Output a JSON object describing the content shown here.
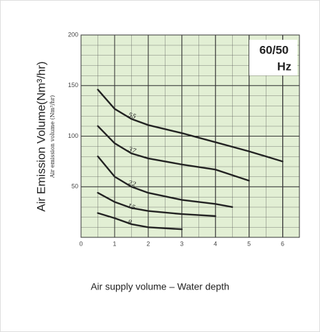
{
  "chart_data": {
    "type": "line",
    "annotation": [
      "60/50",
      "Hz"
    ],
    "ylabel": "Air Emission Volume(Nm³/hr)",
    "ylabel_small": "Air emission volume (Nm³/hr)",
    "xlabel": "Air supply volume – Water depth",
    "xlim": [
      0,
      6.5
    ],
    "ylim": [
      0,
      200
    ],
    "xticks": [
      0,
      1,
      2,
      3,
      4,
      5,
      6
    ],
    "yticks": [
      50,
      100,
      150,
      200
    ],
    "grid": true,
    "color": "#222222",
    "background": "#e2efd4",
    "series": [
      {
        "name": "55",
        "x": [
          0.5,
          1,
          1.5,
          2,
          3,
          4,
          5,
          6
        ],
        "values": [
          146,
          127,
          117,
          111,
          103,
          94,
          85,
          75
        ]
      },
      {
        "name": "37",
        "x": [
          0.5,
          1,
          1.5,
          2,
          3,
          4,
          5
        ],
        "values": [
          110,
          93,
          83,
          78,
          72,
          67,
          56
        ]
      },
      {
        "name": "22",
        "x": [
          0.5,
          1,
          1.5,
          2,
          3,
          4,
          4.5
        ],
        "values": [
          80,
          60,
          50,
          44,
          37,
          33,
          30
        ]
      },
      {
        "name": "15",
        "x": [
          0.5,
          1,
          1.5,
          2,
          3,
          4
        ],
        "values": [
          44,
          35,
          29,
          26,
          23,
          21
        ]
      },
      {
        "name": "8",
        "x": [
          0.5,
          1,
          1.5,
          2,
          3
        ],
        "values": [
          24,
          19,
          13,
          10,
          8
        ]
      }
    ]
  }
}
